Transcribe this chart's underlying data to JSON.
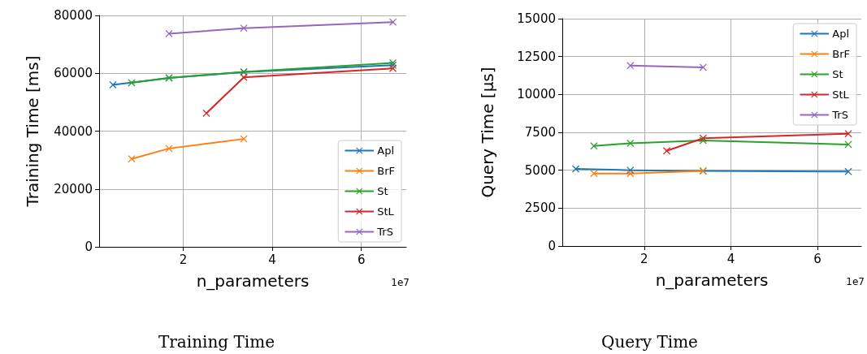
{
  "chart_data": [
    {
      "type": "line",
      "title": "Training Time",
      "xlabel": "n_parameters",
      "ylabel": "Training Time [ms]",
      "annotations": [
        "1e7"
      ],
      "xlim": [
        0.11,
        7.01
      ],
      "xticks": [
        2,
        4,
        6
      ],
      "ylim": [
        0,
        80000
      ],
      "yticks": [
        0,
        20000,
        40000,
        60000,
        80000
      ],
      "grid": true,
      "legend": "bottom right",
      "marker": "cross",
      "line_style": "solid",
      "series": [
        {
          "name": "Apl",
          "color": "#1f77b4",
          "x": [
            0.42,
            1.68,
            3.36,
            6.71
          ],
          "values": [
            56000,
            58400,
            60400,
            62800
          ]
        },
        {
          "name": "BrF",
          "color": "#ff7f0e",
          "x": [
            0.84,
            1.68,
            3.36
          ],
          "values": [
            30400,
            34000,
            37300
          ]
        },
        {
          "name": "St",
          "color": "#2ca02c",
          "x": [
            0.84,
            1.68,
            3.36,
            6.71
          ],
          "values": [
            56700,
            58400,
            60500,
            63600
          ]
        },
        {
          "name": "StL",
          "color": "#d62728",
          "x": [
            2.52,
            3.36,
            6.71
          ],
          "values": [
            46200,
            58600,
            61700
          ]
        },
        {
          "name": "TrS",
          "color": "#9467bd",
          "x": [
            1.68,
            3.36,
            6.71
          ],
          "values": [
            73700,
            75600,
            77700
          ]
        }
      ]
    },
    {
      "type": "line",
      "title": "Query Time",
      "xlabel": "n_parameters",
      "ylabel": "Query Time [μs]",
      "annotations": [
        "1e7"
      ],
      "xlim": [
        0.11,
        7.01
      ],
      "xticks": [
        2,
        4,
        6
      ],
      "ylim": [
        0,
        15000
      ],
      "yticks": [
        0,
        2500,
        5000,
        7500,
        10000,
        12500,
        15000
      ],
      "grid": true,
      "legend": "top right",
      "marker": "cross",
      "line_style": "solid",
      "series": [
        {
          "name": "Apl",
          "color": "#1f77b4",
          "x": [
            0.42,
            1.68,
            3.36,
            6.71
          ],
          "values": [
            5090,
            5000,
            4950,
            4910
          ]
        },
        {
          "name": "BrF",
          "color": "#ff7f0e",
          "x": [
            0.84,
            1.68,
            3.36
          ],
          "values": [
            4780,
            4780,
            4960
          ]
        },
        {
          "name": "St",
          "color": "#2ca02c",
          "x": [
            0.84,
            1.68,
            3.36,
            6.71
          ],
          "values": [
            6600,
            6780,
            6960,
            6700
          ]
        },
        {
          "name": "StL",
          "color": "#d62728",
          "x": [
            2.52,
            3.36,
            6.71
          ],
          "values": [
            6280,
            7110,
            7410
          ]
        },
        {
          "name": "TrS",
          "color": "#9467bd",
          "x": [
            1.68,
            3.36
          ],
          "values": [
            11900,
            11790
          ]
        }
      ]
    }
  ]
}
